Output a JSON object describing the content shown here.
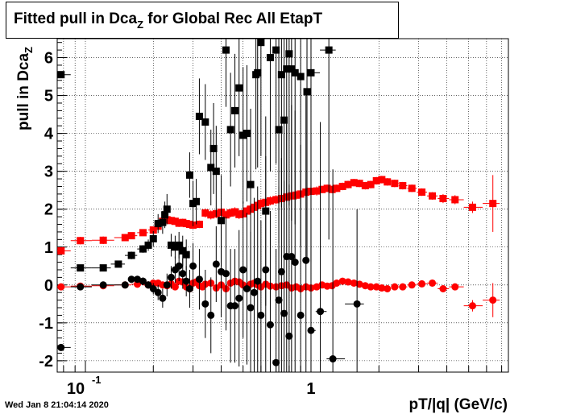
{
  "title": {
    "main": "Fitted pull in Dca",
    "sub": "Z",
    "rest": " for Global Rec All EtapT"
  },
  "ylabel": {
    "main": "pull in Dca",
    "sub": "Z"
  },
  "xlabel": "pT/|q| (GeV/c)",
  "datestamp": "Wed Jan  8 21:04:14 2020",
  "xticks": [
    {
      "value": 0.1,
      "base": "10",
      "exp": "-1"
    },
    {
      "value": 1,
      "base": "1",
      "exp": ""
    }
  ],
  "yticks": [
    "-2",
    "-1",
    "0",
    "1",
    "2",
    "3",
    "4",
    "5",
    "6"
  ],
  "chart_data": {
    "type": "scatter",
    "title": "Fitted pull in Dca_Z for Global Rec All EtapT",
    "xlabel": "pT/|q| (GeV/c)",
    "ylabel": "pull in Dca_Z",
    "xscale": "log",
    "xlim": [
      0.075,
      7.5
    ],
    "ylim": [
      -2.3,
      6.5
    ],
    "grid": true,
    "series": [
      {
        "color": "#ff0000",
        "marker": "square",
        "points": [
          [
            0.078,
            0.9,
            0
          ],
          [
            0.095,
            1.17,
            0.1
          ],
          [
            0.12,
            1.18,
            0.1
          ],
          [
            0.15,
            1.25,
            0.06
          ],
          [
            0.16,
            1.3,
            0.06
          ],
          [
            0.18,
            1.38,
            0.06
          ],
          [
            0.2,
            1.45,
            0.06
          ],
          [
            0.21,
            1.55,
            0.08
          ],
          [
            0.22,
            1.68,
            0.1
          ],
          [
            0.23,
            1.72,
            0.1
          ],
          [
            0.24,
            1.7,
            0.1
          ],
          [
            0.25,
            1.68,
            0.1
          ],
          [
            0.26,
            1.63,
            0.1
          ],
          [
            0.27,
            1.65,
            0.1
          ],
          [
            0.28,
            1.62,
            0.1
          ],
          [
            0.29,
            1.6,
            0.1
          ],
          [
            0.3,
            1.58,
            0.1
          ],
          [
            0.32,
            1.6,
            0.1
          ],
          [
            0.34,
            1.9,
            0.12
          ],
          [
            0.36,
            1.85,
            0.12
          ],
          [
            0.38,
            1.88,
            0.12
          ],
          [
            0.4,
            1.92,
            0.12
          ],
          [
            0.42,
            1.85,
            0.12
          ],
          [
            0.44,
            1.9,
            0.12
          ],
          [
            0.46,
            1.93,
            0.12
          ],
          [
            0.48,
            1.86,
            0.12
          ],
          [
            0.5,
            1.88,
            0.12
          ],
          [
            0.52,
            1.95,
            0.12
          ],
          [
            0.54,
            2.0,
            0.12
          ],
          [
            0.56,
            2.05,
            0.12
          ],
          [
            0.58,
            2.1,
            0.12
          ],
          [
            0.6,
            2.15,
            0.12
          ],
          [
            0.63,
            2.18,
            0.12
          ],
          [
            0.66,
            2.22,
            0.12
          ],
          [
            0.7,
            2.25,
            0.12
          ],
          [
            0.74,
            2.28,
            0.12
          ],
          [
            0.78,
            2.32,
            0.12
          ],
          [
            0.82,
            2.35,
            0.12
          ],
          [
            0.86,
            2.37,
            0.12
          ],
          [
            0.9,
            2.4,
            0.12
          ],
          [
            0.95,
            2.45,
            0.12
          ],
          [
            1.0,
            2.47,
            0.12
          ],
          [
            1.06,
            2.48,
            0.12
          ],
          [
            1.12,
            2.52,
            0.1
          ],
          [
            1.18,
            2.55,
            0.1
          ],
          [
            1.24,
            2.52,
            0.1
          ],
          [
            1.3,
            2.55,
            0.1
          ],
          [
            1.38,
            2.6,
            0.1
          ],
          [
            1.46,
            2.65,
            0.1
          ],
          [
            1.55,
            2.7,
            0.1
          ],
          [
            1.64,
            2.68,
            0.1
          ],
          [
            1.74,
            2.62,
            0.1
          ],
          [
            1.84,
            2.65,
            0.1
          ],
          [
            1.95,
            2.75,
            0.1
          ],
          [
            2.06,
            2.78,
            0.1
          ],
          [
            2.18,
            2.72,
            0.1
          ],
          [
            2.35,
            2.68,
            0.1
          ],
          [
            2.55,
            2.62,
            0.1
          ],
          [
            2.8,
            2.55,
            0.1
          ],
          [
            3.1,
            2.45,
            0.1
          ],
          [
            3.45,
            2.35,
            0.1
          ],
          [
            3.85,
            2.28,
            0.12
          ],
          [
            4.35,
            2.25,
            0.12
          ],
          [
            5.2,
            2.05,
            0.15
          ],
          [
            6.4,
            2.15,
            0.75
          ]
        ]
      },
      {
        "color": "#ff0000",
        "marker": "circle",
        "points": [
          [
            0.078,
            -0.05,
            0
          ],
          [
            0.095,
            -0.03,
            0.05
          ],
          [
            0.12,
            -0.02,
            0.05
          ],
          [
            0.15,
            0.0,
            0.05
          ],
          [
            0.17,
            0.02,
            0.05
          ],
          [
            0.19,
            0.0,
            0.05
          ],
          [
            0.2,
            0.05,
            0.05
          ],
          [
            0.21,
            0.05,
            0.06
          ],
          [
            0.22,
            0.0,
            0.08
          ],
          [
            0.23,
            -0.02,
            0.08
          ],
          [
            0.24,
            0.03,
            0.08
          ],
          [
            0.25,
            -0.05,
            0.08
          ],
          [
            0.26,
            0.1,
            0.08
          ],
          [
            0.27,
            0.08,
            0.08
          ],
          [
            0.28,
            -0.05,
            0.08
          ],
          [
            0.29,
            -0.1,
            0.08
          ],
          [
            0.3,
            0.05,
            0.08
          ],
          [
            0.31,
            0.08,
            0.08
          ],
          [
            0.32,
            -0.02,
            0.08
          ],
          [
            0.33,
            -0.05,
            0.08
          ],
          [
            0.34,
            0.02,
            0.08
          ],
          [
            0.36,
            0.05,
            0.08
          ],
          [
            0.38,
            -0.08,
            0.08
          ],
          [
            0.4,
            0.0,
            0.08
          ],
          [
            0.42,
            -0.1,
            0.08
          ],
          [
            0.44,
            0.05,
            0.08
          ],
          [
            0.46,
            0.1,
            0.08
          ],
          [
            0.48,
            0.08,
            0.08
          ],
          [
            0.5,
            0.0,
            0.08
          ],
          [
            0.52,
            -0.05,
            0.08
          ],
          [
            0.54,
            0.02,
            0.08
          ],
          [
            0.56,
            0.05,
            0.08
          ],
          [
            0.58,
            0.0,
            0.08
          ],
          [
            0.6,
            -0.05,
            0.08
          ],
          [
            0.63,
            0.02,
            0.08
          ],
          [
            0.66,
            -0.03,
            0.08
          ],
          [
            0.7,
            -0.05,
            0.08
          ],
          [
            0.74,
            -0.02,
            0.08
          ],
          [
            0.78,
            0.0,
            0.08
          ],
          [
            0.82,
            -0.08,
            0.08
          ],
          [
            0.86,
            -0.05,
            0.08
          ],
          [
            0.9,
            -0.1,
            0.08
          ],
          [
            0.95,
            -0.05,
            0.08
          ],
          [
            1.0,
            -0.08,
            0.08
          ],
          [
            1.06,
            -0.05,
            0.08
          ],
          [
            1.12,
            0.0,
            0.08
          ],
          [
            1.18,
            -0.03,
            0.08
          ],
          [
            1.24,
            -0.02,
            0.08
          ],
          [
            1.3,
            0.05,
            0.08
          ],
          [
            1.38,
            0.1,
            0.08
          ],
          [
            1.46,
            0.08,
            0.08
          ],
          [
            1.55,
            0.05,
            0.08
          ],
          [
            1.64,
            0.02,
            0.08
          ],
          [
            1.74,
            -0.02,
            0.08
          ],
          [
            1.84,
            -0.05,
            0.08
          ],
          [
            1.95,
            -0.05,
            0.08
          ],
          [
            2.06,
            -0.08,
            0.08
          ],
          [
            2.18,
            -0.1,
            0.08
          ],
          [
            2.35,
            -0.05,
            0.08
          ],
          [
            2.55,
            -0.05,
            0.08
          ],
          [
            2.8,
            0.0,
            0.08
          ],
          [
            3.1,
            0.03,
            0.08
          ],
          [
            3.45,
            0.05,
            0.08
          ],
          [
            3.85,
            -0.1,
            0.08
          ],
          [
            4.35,
            -0.05,
            0.08
          ],
          [
            5.2,
            -0.55,
            0.15
          ],
          [
            6.4,
            -0.4,
            0.45
          ]
        ]
      },
      {
        "color": "#000000",
        "marker": "square",
        "points": [
          [
            0.078,
            5.55,
            0
          ],
          [
            0.095,
            0.45,
            0.05
          ],
          [
            0.12,
            0.45,
            0.05
          ],
          [
            0.14,
            0.55,
            0.08
          ],
          [
            0.16,
            0.78,
            0.1
          ],
          [
            0.18,
            0.95,
            0.1
          ],
          [
            0.19,
            1.05,
            0.15
          ],
          [
            0.2,
            1.22,
            0.2
          ],
          [
            0.21,
            1.62,
            0.25
          ],
          [
            0.22,
            1.65,
            0.3
          ],
          [
            0.225,
            1.85,
            0.35
          ],
          [
            0.23,
            2.0,
            0.4
          ],
          [
            0.24,
            1.05,
            0.3
          ],
          [
            0.25,
            1.0,
            0.3
          ],
          [
            0.26,
            1.05,
            0.35
          ],
          [
            0.27,
            0.9,
            0.4
          ],
          [
            0.28,
            0.8,
            0.4
          ],
          [
            0.29,
            2.9,
            0.6
          ],
          [
            0.3,
            2.15,
            0.6
          ],
          [
            0.31,
            2.2,
            0.6
          ],
          [
            0.32,
            4.45,
            1.0
          ],
          [
            0.34,
            4.3,
            1.0
          ],
          [
            0.36,
            3.1,
            1.0
          ],
          [
            0.37,
            3.6,
            1.2
          ],
          [
            0.38,
            3.0,
            1.2
          ],
          [
            0.4,
            1.7,
            1.2
          ],
          [
            0.42,
            6.2,
            1.5
          ],
          [
            0.44,
            4.1,
            1.5
          ],
          [
            0.46,
            4.6,
            1.5
          ],
          [
            0.48,
            5.2,
            1.8
          ],
          [
            0.5,
            3.95,
            1.8
          ],
          [
            0.52,
            4.0,
            1.8
          ],
          [
            0.54,
            2.65,
            2.0
          ],
          [
            0.57,
            5.55,
            2.5
          ],
          [
            0.58,
            5.6,
            2.5
          ],
          [
            0.6,
            6.4,
            3.0
          ],
          [
            0.63,
            1.95,
            2.5
          ],
          [
            0.66,
            6.0,
            3.0
          ],
          [
            0.7,
            6.2,
            3.0
          ],
          [
            0.72,
            4.1,
            3.0
          ],
          [
            0.74,
            5.55,
            3.5
          ],
          [
            0.76,
            4.35,
            3.5
          ],
          [
            0.78,
            5.7,
            3.5
          ],
          [
            0.8,
            6.1,
            4.0
          ],
          [
            0.82,
            5.7,
            4.0
          ],
          [
            0.85,
            5.6,
            4.0
          ],
          [
            0.9,
            5.5,
            4.5
          ],
          [
            0.96,
            5.1,
            4.5
          ],
          [
            1.0,
            5.6,
            5.0
          ],
          [
            1.2,
            6.2,
            5.0
          ]
        ]
      },
      {
        "color": "#000000",
        "marker": "circle",
        "points": [
          [
            0.078,
            -1.65,
            0
          ],
          [
            0.095,
            -0.05,
            0.05
          ],
          [
            0.12,
            0.0,
            0.05
          ],
          [
            0.15,
            0.0,
            0.05
          ],
          [
            0.16,
            0.15,
            0.08
          ],
          [
            0.17,
            0.15,
            0.08
          ],
          [
            0.18,
            0.1,
            0.1
          ],
          [
            0.19,
            0.0,
            0.1
          ],
          [
            0.2,
            -0.1,
            0.15
          ],
          [
            0.21,
            -0.2,
            0.2
          ],
          [
            0.22,
            -0.35,
            0.25
          ],
          [
            0.23,
            0.0,
            0.3
          ],
          [
            0.24,
            0.2,
            0.3
          ],
          [
            0.25,
            0.4,
            0.35
          ],
          [
            0.26,
            0.5,
            0.4
          ],
          [
            0.27,
            0.3,
            0.4
          ],
          [
            0.28,
            0.1,
            0.4
          ],
          [
            0.29,
            -0.1,
            0.5
          ],
          [
            0.3,
            0.5,
            0.6
          ],
          [
            0.32,
            0.15,
            0.8
          ],
          [
            0.34,
            -0.5,
            0.9
          ],
          [
            0.36,
            -0.8,
            1.0
          ],
          [
            0.38,
            0.55,
            1.0
          ],
          [
            0.4,
            0.35,
            1.2
          ],
          [
            0.42,
            0.3,
            1.5
          ],
          [
            0.44,
            -0.55,
            1.5
          ],
          [
            0.46,
            -0.55,
            1.5
          ],
          [
            0.48,
            -0.35,
            1.8
          ],
          [
            0.5,
            0.4,
            1.8
          ],
          [
            0.52,
            -0.1,
            2.0
          ],
          [
            0.54,
            -0.6,
            2.0
          ],
          [
            0.56,
            -0.2,
            2.5
          ],
          [
            0.58,
            0.1,
            2.5
          ],
          [
            0.6,
            -0.8,
            2.5
          ],
          [
            0.63,
            0.4,
            3.0
          ],
          [
            0.66,
            -1.05,
            3.0
          ],
          [
            0.7,
            -2.05,
            3.0
          ],
          [
            0.72,
            -0.4,
            3.0
          ],
          [
            0.74,
            0.35,
            3.0
          ],
          [
            0.76,
            -0.75,
            3.5
          ],
          [
            0.78,
            0.75,
            3.5
          ],
          [
            0.8,
            -1.35,
            4.0
          ],
          [
            0.82,
            0.75,
            4.0
          ],
          [
            0.85,
            0.6,
            4.0
          ],
          [
            0.9,
            -0.8,
            4.5
          ],
          [
            0.95,
            0.65,
            4.5
          ],
          [
            1.0,
            -1.2,
            5.0
          ],
          [
            1.1,
            -0.7,
            5.0
          ],
          [
            1.25,
            -1.95,
            5.0
          ],
          [
            1.6,
            -0.5,
            2.5
          ]
        ]
      }
    ]
  }
}
